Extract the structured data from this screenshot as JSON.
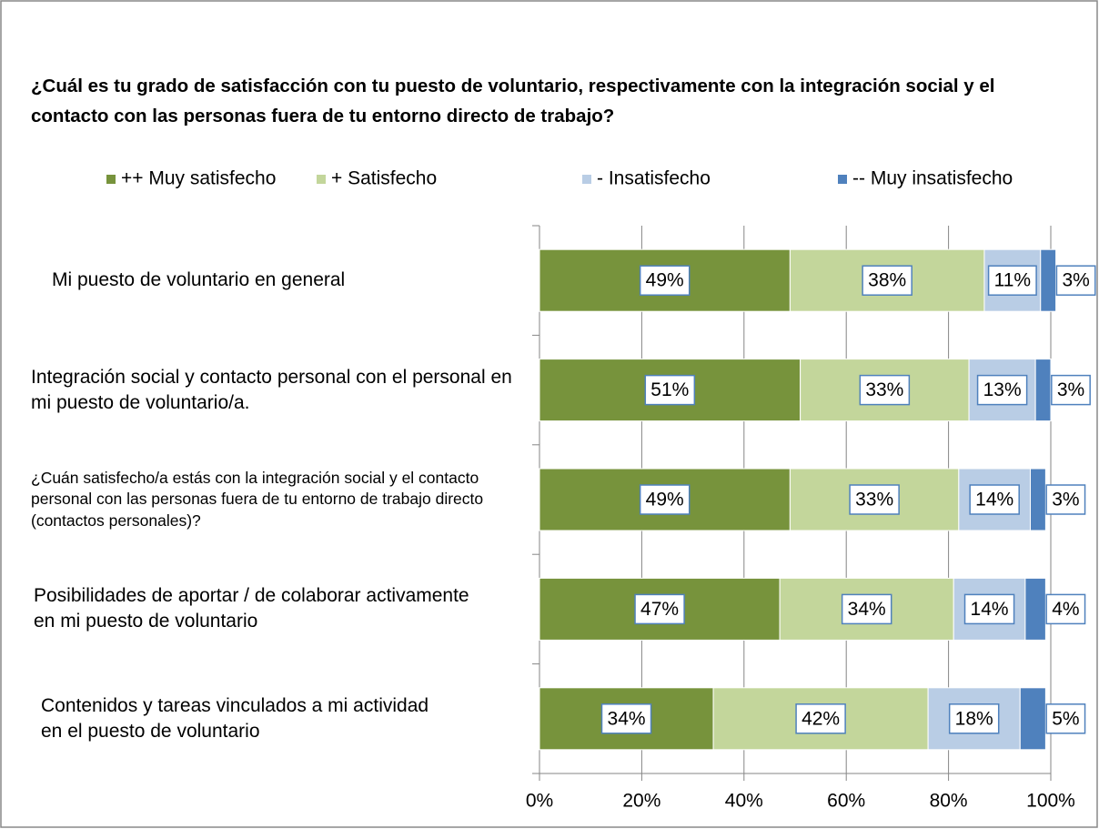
{
  "chart_data": {
    "type": "stacked_bar_horizontal",
    "title": "¿Cuál es tu grado de satisfacción con tu puesto de voluntario, respectivamente con la integración social y el contacto con las personas fuera de tu entorno directo de trabajo?",
    "categories": [
      "Mi puesto de voluntario en general",
      "Integración social y contacto personal con el personal en mi puesto de voluntario/a.",
      "¿Cuán satisfecho/a estás con la integración social y el contacto personal con las personas fuera de tu entorno de trabajo directo (contactos personales)?",
      "Posibilidades de aportar / de colaborar activamente en mi puesto de voluntario",
      "Contenidos y tareas vinculados a mi actividad en el puesto de voluntario"
    ],
    "series": [
      {
        "name": "++ Muy satisfecho",
        "color": "#77933c",
        "values": [
          49,
          51,
          49,
          47,
          34
        ],
        "value_labels": [
          "49%",
          "51%",
          "49%",
          "47%",
          "34%"
        ]
      },
      {
        "name": "+ Satisfecho",
        "color": "#c3d69b",
        "values": [
          38,
          33,
          33,
          34,
          42
        ],
        "value_labels": [
          "38%",
          "33%",
          "33%",
          "34%",
          "42%"
        ]
      },
      {
        "name": "- Insatisfecho",
        "color": "#b9cde5",
        "values": [
          11,
          13,
          14,
          14,
          18
        ],
        "value_labels": [
          "11%",
          "13%",
          "14%",
          "14%",
          "18%"
        ]
      },
      {
        "name": "-- Muy insatisfecho",
        "color": "#4f81bd",
        "values": [
          3,
          3,
          3,
          4,
          5
        ],
        "value_labels": [
          "3%",
          "3%",
          "3%",
          "4%",
          "5%"
        ]
      }
    ],
    "xlim": [
      0,
      100
    ],
    "xticks": [
      {
        "value": 0,
        "label": "0%"
      },
      {
        "value": 20,
        "label": "20%"
      },
      {
        "value": 40,
        "label": "40%"
      },
      {
        "value": 60,
        "label": "60%"
      },
      {
        "value": 80,
        "label": "80%"
      },
      {
        "value": 100,
        "label": "100%"
      }
    ],
    "grid": true,
    "legend": "top"
  }
}
